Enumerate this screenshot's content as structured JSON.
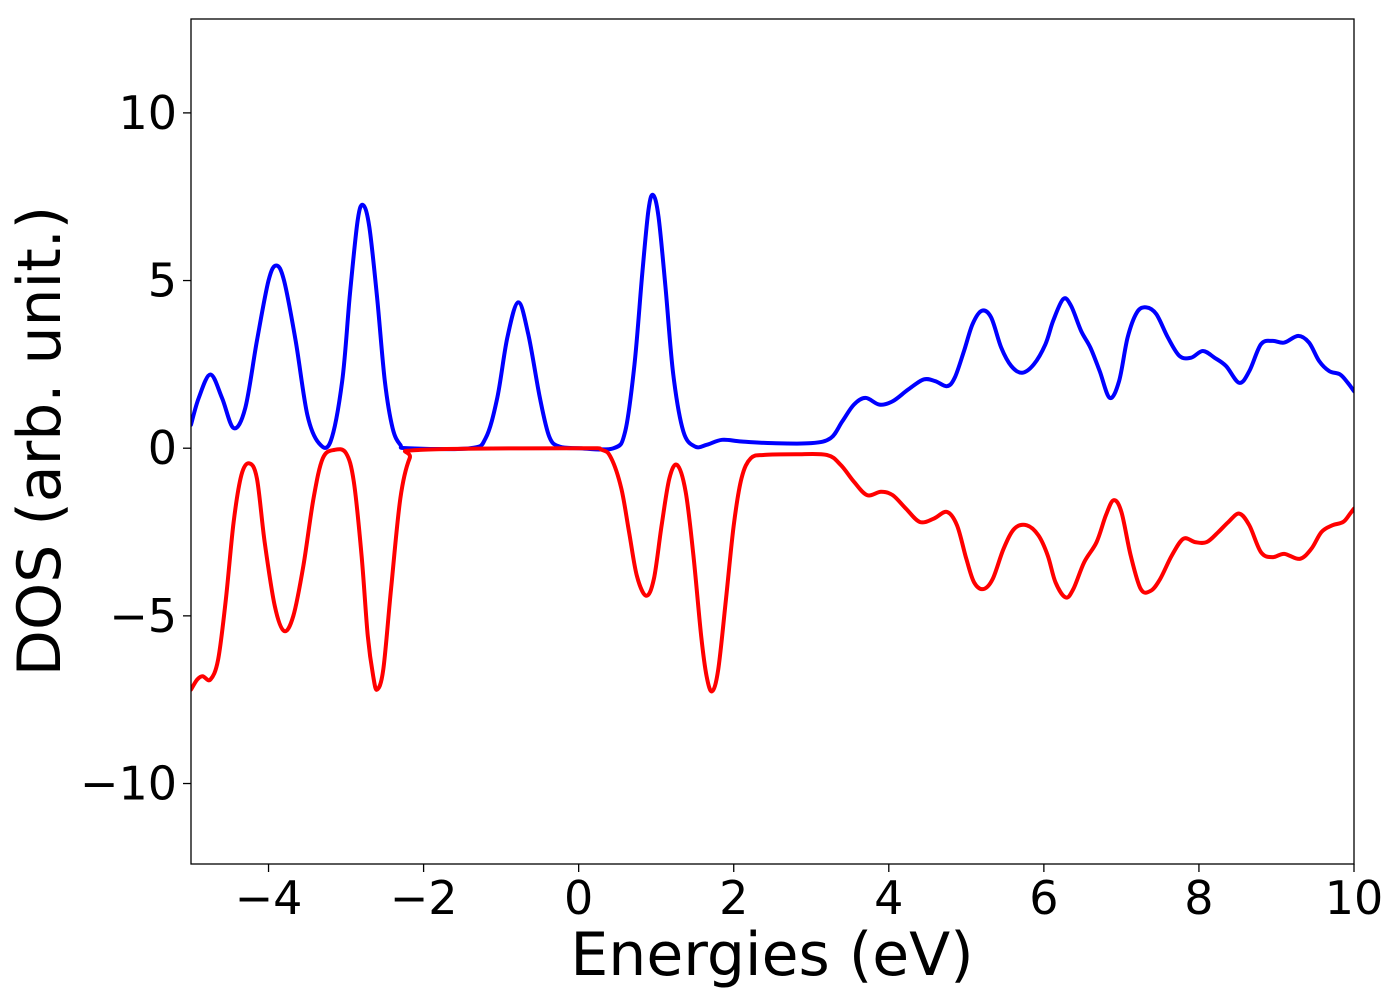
{
  "chart_data": {
    "type": "line",
    "xlabel": "Energies (eV)",
    "ylabel": "DOS (arb. unit.)",
    "xlim": [
      -5,
      10
    ],
    "ylim": [
      -12.4,
      12.8
    ],
    "x_ticks": [
      -4,
      -2,
      0,
      2,
      4,
      6,
      8,
      10
    ],
    "x_tick_labels": [
      "−4",
      "−2",
      "0",
      "2",
      "4",
      "6",
      "8",
      "10"
    ],
    "y_ticks": [
      10,
      5,
      0,
      -5,
      -10
    ],
    "y_tick_labels": [
      "10",
      "5",
      "0",
      "−5",
      "−10"
    ],
    "grid": false,
    "series": [
      {
        "color": "#0000ff",
        "points": [
          [
            -5.0,
            0.7
          ],
          [
            -4.9,
            1.5
          ],
          [
            -4.75,
            2.2
          ],
          [
            -4.6,
            1.5
          ],
          [
            -4.45,
            0.6
          ],
          [
            -4.3,
            1.2
          ],
          [
            -4.15,
            3.2
          ],
          [
            -4.0,
            5.0
          ],
          [
            -3.9,
            5.45
          ],
          [
            -3.8,
            5.0
          ],
          [
            -3.65,
            3.2
          ],
          [
            -3.5,
            1.0
          ],
          [
            -3.35,
            0.15
          ],
          [
            -3.2,
            0.2
          ],
          [
            -3.05,
            2.0
          ],
          [
            -2.95,
            4.6
          ],
          [
            -2.85,
            6.8
          ],
          [
            -2.78,
            7.25
          ],
          [
            -2.7,
            6.6
          ],
          [
            -2.6,
            4.5
          ],
          [
            -2.5,
            2.0
          ],
          [
            -2.4,
            0.6
          ],
          [
            -2.3,
            0.1
          ],
          [
            -2.2,
            0.0
          ],
          [
            -1.4,
            0.0
          ],
          [
            -1.2,
            0.3
          ],
          [
            -1.05,
            1.5
          ],
          [
            -0.92,
            3.3
          ],
          [
            -0.78,
            4.35
          ],
          [
            -0.65,
            3.4
          ],
          [
            -0.5,
            1.5
          ],
          [
            -0.38,
            0.35
          ],
          [
            -0.25,
            0.05
          ],
          [
            0.0,
            0.0
          ],
          [
            0.45,
            0.0
          ],
          [
            0.6,
            0.5
          ],
          [
            0.72,
            2.5
          ],
          [
            0.82,
            5.2
          ],
          [
            0.9,
            7.1
          ],
          [
            0.96,
            7.55
          ],
          [
            1.03,
            6.9
          ],
          [
            1.12,
            4.8
          ],
          [
            1.22,
            2.2
          ],
          [
            1.35,
            0.5
          ],
          [
            1.5,
            0.05
          ],
          [
            1.65,
            0.1
          ],
          [
            1.85,
            0.25
          ],
          [
            2.1,
            0.2
          ],
          [
            2.5,
            0.15
          ],
          [
            3.0,
            0.15
          ],
          [
            3.25,
            0.3
          ],
          [
            3.4,
            0.8
          ],
          [
            3.55,
            1.3
          ],
          [
            3.7,
            1.5
          ],
          [
            3.88,
            1.3
          ],
          [
            4.05,
            1.4
          ],
          [
            4.25,
            1.75
          ],
          [
            4.45,
            2.05
          ],
          [
            4.6,
            2.0
          ],
          [
            4.75,
            1.85
          ],
          [
            4.85,
            2.1
          ],
          [
            4.97,
            2.9
          ],
          [
            5.08,
            3.7
          ],
          [
            5.2,
            4.1
          ],
          [
            5.32,
            3.9
          ],
          [
            5.45,
            3.0
          ],
          [
            5.58,
            2.45
          ],
          [
            5.72,
            2.25
          ],
          [
            5.87,
            2.5
          ],
          [
            6.02,
            3.1
          ],
          [
            6.12,
            3.8
          ],
          [
            6.25,
            4.45
          ],
          [
            6.35,
            4.25
          ],
          [
            6.48,
            3.5
          ],
          [
            6.6,
            3.0
          ],
          [
            6.72,
            2.3
          ],
          [
            6.85,
            1.5
          ],
          [
            6.97,
            2.0
          ],
          [
            7.08,
            3.3
          ],
          [
            7.2,
            4.05
          ],
          [
            7.32,
            4.2
          ],
          [
            7.45,
            4.0
          ],
          [
            7.6,
            3.3
          ],
          [
            7.75,
            2.75
          ],
          [
            7.9,
            2.7
          ],
          [
            8.05,
            2.9
          ],
          [
            8.2,
            2.7
          ],
          [
            8.35,
            2.45
          ],
          [
            8.52,
            1.95
          ],
          [
            8.65,
            2.3
          ],
          [
            8.8,
            3.1
          ],
          [
            8.95,
            3.2
          ],
          [
            9.1,
            3.15
          ],
          [
            9.28,
            3.35
          ],
          [
            9.42,
            3.15
          ],
          [
            9.55,
            2.6
          ],
          [
            9.68,
            2.3
          ],
          [
            9.82,
            2.2
          ],
          [
            9.92,
            1.95
          ],
          [
            10.0,
            1.7
          ]
        ]
      },
      {
        "color": "#ff0000",
        "points": [
          [
            -5.0,
            -7.2
          ],
          [
            -4.92,
            -6.9
          ],
          [
            -4.85,
            -6.8
          ],
          [
            -4.75,
            -6.9
          ],
          [
            -4.65,
            -6.3
          ],
          [
            -4.55,
            -4.5
          ],
          [
            -4.45,
            -2.2
          ],
          [
            -4.35,
            -0.8
          ],
          [
            -4.25,
            -0.45
          ],
          [
            -4.15,
            -0.9
          ],
          [
            -4.05,
            -2.8
          ],
          [
            -3.92,
            -4.7
          ],
          [
            -3.8,
            -5.45
          ],
          [
            -3.68,
            -5.0
          ],
          [
            -3.55,
            -3.5
          ],
          [
            -3.42,
            -1.5
          ],
          [
            -3.3,
            -0.3
          ],
          [
            -3.15,
            -0.05
          ],
          [
            -3.0,
            -0.15
          ],
          [
            -2.9,
            -1.0
          ],
          [
            -2.8,
            -3.2
          ],
          [
            -2.72,
            -5.6
          ],
          [
            -2.65,
            -6.8
          ],
          [
            -2.6,
            -7.2
          ],
          [
            -2.52,
            -6.6
          ],
          [
            -2.42,
            -4.2
          ],
          [
            -2.3,
            -1.5
          ],
          [
            -2.18,
            -0.3
          ],
          [
            -2.05,
            -0.05
          ],
          [
            0.0,
            0.0
          ],
          [
            0.3,
            -0.05
          ],
          [
            0.42,
            -0.3
          ],
          [
            0.55,
            -1.2
          ],
          [
            0.65,
            -2.5
          ],
          [
            0.75,
            -3.8
          ],
          [
            0.87,
            -4.4
          ],
          [
            0.97,
            -3.9
          ],
          [
            1.07,
            -2.3
          ],
          [
            1.17,
            -0.9
          ],
          [
            1.27,
            -0.5
          ],
          [
            1.38,
            -1.3
          ],
          [
            1.48,
            -3.2
          ],
          [
            1.58,
            -5.6
          ],
          [
            1.65,
            -6.8
          ],
          [
            1.72,
            -7.25
          ],
          [
            1.8,
            -6.6
          ],
          [
            1.9,
            -4.5
          ],
          [
            2.0,
            -2.3
          ],
          [
            2.1,
            -0.9
          ],
          [
            2.22,
            -0.3
          ],
          [
            2.4,
            -0.2
          ],
          [
            2.8,
            -0.18
          ],
          [
            3.2,
            -0.2
          ],
          [
            3.38,
            -0.5
          ],
          [
            3.55,
            -1.0
          ],
          [
            3.72,
            -1.4
          ],
          [
            3.9,
            -1.3
          ],
          [
            4.05,
            -1.4
          ],
          [
            4.22,
            -1.8
          ],
          [
            4.4,
            -2.2
          ],
          [
            4.58,
            -2.1
          ],
          [
            4.75,
            -1.9
          ],
          [
            4.88,
            -2.3
          ],
          [
            5.0,
            -3.3
          ],
          [
            5.1,
            -4.0
          ],
          [
            5.22,
            -4.2
          ],
          [
            5.34,
            -3.9
          ],
          [
            5.48,
            -3.0
          ],
          [
            5.62,
            -2.4
          ],
          [
            5.78,
            -2.3
          ],
          [
            5.93,
            -2.6
          ],
          [
            6.05,
            -3.2
          ],
          [
            6.15,
            -4.0
          ],
          [
            6.28,
            -4.45
          ],
          [
            6.38,
            -4.2
          ],
          [
            6.52,
            -3.4
          ],
          [
            6.68,
            -2.8
          ],
          [
            6.8,
            -2.0
          ],
          [
            6.9,
            -1.55
          ],
          [
            7.0,
            -1.9
          ],
          [
            7.12,
            -3.2
          ],
          [
            7.25,
            -4.2
          ],
          [
            7.38,
            -4.25
          ],
          [
            7.5,
            -3.9
          ],
          [
            7.65,
            -3.2
          ],
          [
            7.8,
            -2.7
          ],
          [
            7.95,
            -2.8
          ],
          [
            8.1,
            -2.8
          ],
          [
            8.25,
            -2.5
          ],
          [
            8.38,
            -2.2
          ],
          [
            8.52,
            -1.95
          ],
          [
            8.65,
            -2.3
          ],
          [
            8.8,
            -3.1
          ],
          [
            8.95,
            -3.25
          ],
          [
            9.1,
            -3.15
          ],
          [
            9.3,
            -3.3
          ],
          [
            9.45,
            -3.0
          ],
          [
            9.58,
            -2.5
          ],
          [
            9.72,
            -2.3
          ],
          [
            9.86,
            -2.2
          ],
          [
            9.95,
            -1.95
          ],
          [
            10.0,
            -1.8
          ]
        ]
      }
    ]
  }
}
